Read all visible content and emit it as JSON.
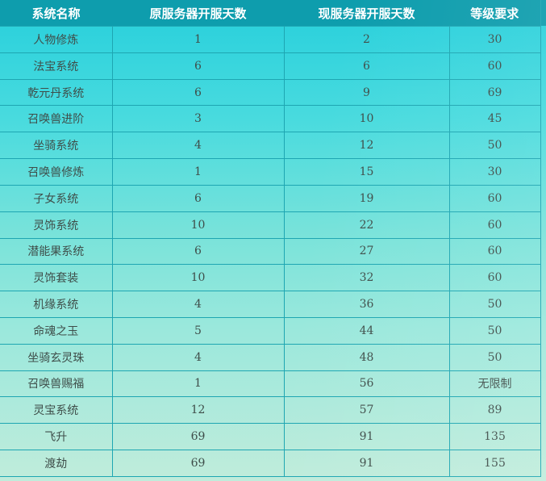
{
  "chart_data": {
    "type": "table",
    "columns": [
      "系统名称",
      "原服务器开服天数",
      "现服务器开服天数",
      "等级要求"
    ],
    "rows": [
      [
        "人物修炼",
        "1",
        "2",
        "30"
      ],
      [
        "法宝系统",
        "6",
        "6",
        "60"
      ],
      [
        "乾元丹系统",
        "6",
        "9",
        "69"
      ],
      [
        "召唤兽进阶",
        "3",
        "10",
        "45"
      ],
      [
        "坐骑系统",
        "4",
        "12",
        "50"
      ],
      [
        "召唤兽修炼",
        "1",
        "15",
        "30"
      ],
      [
        "子女系统",
        "6",
        "19",
        "60"
      ],
      [
        "灵饰系统",
        "10",
        "22",
        "60"
      ],
      [
        "潜能果系统",
        "6",
        "27",
        "60"
      ],
      [
        "灵饰套装",
        "10",
        "32",
        "60"
      ],
      [
        "机缘系统",
        "4",
        "36",
        "50"
      ],
      [
        "命魂之玉",
        "5",
        "44",
        "50"
      ],
      [
        "坐骑玄灵珠",
        "4",
        "48",
        "50"
      ],
      [
        "召唤兽赐福",
        "1",
        "56",
        "无限制"
      ],
      [
        "灵宝系统",
        "12",
        "57",
        "89"
      ],
      [
        "飞升",
        "69",
        "91",
        "135"
      ],
      [
        "渡劫",
        "69",
        "91",
        "155"
      ]
    ]
  },
  "colors": {
    "header_background": "#0e9dad",
    "header_text": "#ffffff",
    "grid_border": "#1ea6b2",
    "cell_text": "#3f4e4a",
    "background_top": "#26cfdc",
    "background_bottom": "#c0ecdb"
  }
}
